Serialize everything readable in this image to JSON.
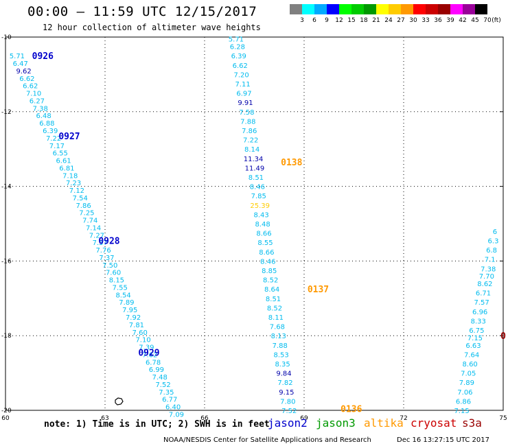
{
  "header": {
    "title": "00:00 – 11:59 UTC 12/15/2017",
    "subtitle": "12 hour collection of altimeter wave heights"
  },
  "legend": {
    "unit": "(ft)",
    "swatches": [
      {
        "color": "#808080",
        "label": "3"
      },
      {
        "color": "#00ffff",
        "label": "6"
      },
      {
        "color": "#00aaff",
        "label": "9"
      },
      {
        "color": "#0000ff",
        "label": "12"
      },
      {
        "color": "#00ff00",
        "label": "15"
      },
      {
        "color": "#00cc00",
        "label": "18"
      },
      {
        "color": "#009900",
        "label": "21"
      },
      {
        "color": "#ffff00",
        "label": "24"
      },
      {
        "color": "#ffcc00",
        "label": "27"
      },
      {
        "color": "#ff9900",
        "label": "30"
      },
      {
        "color": "#ff0000",
        "label": "33"
      },
      {
        "color": "#cc0000",
        "label": "36"
      },
      {
        "color": "#990000",
        "label": "39"
      },
      {
        "color": "#ff00ff",
        "label": "42"
      },
      {
        "color": "#990099",
        "label": "45"
      },
      {
        "color": "#000000",
        "label": "70"
      }
    ]
  },
  "axes": {
    "lon_ticks": [
      "60",
      "63",
      "66",
      "69",
      "72",
      "75"
    ],
    "lat_ticks": [
      "-10",
      "-12",
      "-14",
      "-16",
      "-18",
      "-20"
    ]
  },
  "colors": {
    "jason2": "#0000cc",
    "jason3": "#009900",
    "altika": "#ff9900",
    "cryosat": "#cc0000",
    "s3a": "#990000",
    "blue_light": "#00bbee",
    "blue_dark": "#0000aa",
    "yellow": "#ffcc00"
  },
  "tracks": [
    {
      "satellite": "jason2",
      "times": [
        {
          "label": "0926",
          "lon": 60.8,
          "lat": -10.5
        },
        {
          "label": "0927",
          "lon": 61.6,
          "lat": -12.65
        },
        {
          "label": "0928",
          "lon": 62.8,
          "lat": -15.45
        },
        {
          "label": "0929",
          "lon": 64.0,
          "lat": -18.45
        }
      ],
      "points": [
        {
          "lon": 60.35,
          "lat": -10.5,
          "v": "5.71"
        },
        {
          "lon": 60.45,
          "lat": -10.7,
          "v": "6.47"
        },
        {
          "lon": 60.55,
          "lat": -10.9,
          "v": "9.62",
          "c": "dark"
        },
        {
          "lon": 60.65,
          "lat": -11.1,
          "v": "6.62"
        },
        {
          "lon": 60.75,
          "lat": -11.3,
          "v": "6.62"
        },
        {
          "lon": 60.85,
          "lat": -11.5,
          "v": "7.10"
        },
        {
          "lon": 60.95,
          "lat": -11.7,
          "v": "6.27"
        },
        {
          "lon": 61.05,
          "lat": -11.9,
          "v": "7.38"
        },
        {
          "lon": 61.15,
          "lat": -12.1,
          "v": "6.48"
        },
        {
          "lon": 61.25,
          "lat": -12.3,
          "v": "6.88"
        },
        {
          "lon": 61.35,
          "lat": -12.5,
          "v": "6.39"
        },
        {
          "lon": 61.45,
          "lat": -12.7,
          "v": "7.22"
        },
        {
          "lon": 61.55,
          "lat": -12.9,
          "v": "7.17"
        },
        {
          "lon": 61.65,
          "lat": -13.1,
          "v": "6.55"
        },
        {
          "lon": 61.75,
          "lat": -13.3,
          "v": "6.61"
        },
        {
          "lon": 61.85,
          "lat": -13.5,
          "v": "6.81"
        },
        {
          "lon": 61.95,
          "lat": -13.7,
          "v": "7.18"
        },
        {
          "lon": 62.05,
          "lat": -13.9,
          "v": "7.23"
        },
        {
          "lon": 62.15,
          "lat": -14.1,
          "v": "7.12"
        },
        {
          "lon": 62.25,
          "lat": -14.3,
          "v": "7.54"
        },
        {
          "lon": 62.35,
          "lat": -14.5,
          "v": "7.86"
        },
        {
          "lon": 62.45,
          "lat": -14.7,
          "v": "7.25"
        },
        {
          "lon": 62.55,
          "lat": -14.9,
          "v": "7.74"
        },
        {
          "lon": 62.65,
          "lat": -15.1,
          "v": "7.14"
        },
        {
          "lon": 62.75,
          "lat": -15.3,
          "v": "7.27"
        },
        {
          "lon": 62.85,
          "lat": -15.5,
          "v": "7.57"
        },
        {
          "lon": 62.95,
          "lat": -15.7,
          "v": "7.76"
        },
        {
          "lon": 63.05,
          "lat": -15.9,
          "v": "7.37"
        },
        {
          "lon": 63.15,
          "lat": -16.1,
          "v": "7.50"
        },
        {
          "lon": 63.25,
          "lat": -16.3,
          "v": "7.60"
        },
        {
          "lon": 63.35,
          "lat": -16.5,
          "v": "8.15"
        },
        {
          "lon": 63.45,
          "lat": -16.7,
          "v": "7.55"
        },
        {
          "lon": 63.55,
          "lat": -16.9,
          "v": "8.54"
        },
        {
          "lon": 63.65,
          "lat": -17.1,
          "v": "7.89"
        },
        {
          "lon": 63.75,
          "lat": -17.3,
          "v": "7.95"
        },
        {
          "lon": 63.85,
          "lat": -17.5,
          "v": "7.92"
        },
        {
          "lon": 63.95,
          "lat": -17.7,
          "v": "7.81"
        },
        {
          "lon": 64.05,
          "lat": -17.9,
          "v": "7.60"
        },
        {
          "lon": 64.15,
          "lat": -18.1,
          "v": "7.10"
        },
        {
          "lon": 64.25,
          "lat": -18.3,
          "v": "7.39"
        },
        {
          "lon": 64.35,
          "lat": -18.5,
          "v": "7.62"
        },
        {
          "lon": 64.45,
          "lat": -18.7,
          "v": "6.78"
        },
        {
          "lon": 64.55,
          "lat": -18.9,
          "v": "6.99"
        },
        {
          "lon": 64.65,
          "lat": -19.1,
          "v": "7.48"
        },
        {
          "lon": 64.75,
          "lat": -19.3,
          "v": "7.52"
        },
        {
          "lon": 64.85,
          "lat": -19.5,
          "v": "7.35"
        },
        {
          "lon": 64.95,
          "lat": -19.7,
          "v": "6.77"
        },
        {
          "lon": 65.05,
          "lat": -19.9,
          "v": "6.40"
        },
        {
          "lon": 65.15,
          "lat": -20.1,
          "v": "7.09"
        }
      ]
    },
    {
      "satellite": "altika",
      "times": [
        {
          "label": "0138",
          "lon": 68.3,
          "lat": -13.35
        },
        {
          "label": "0137",
          "lon": 69.1,
          "lat": -16.75
        },
        {
          "label": "0136",
          "lon": 70.1,
          "lat": -19.95
        }
      ],
      "points": [
        {
          "lon": 66.95,
          "lat": -10.05,
          "v": "5.71"
        },
        {
          "lon": 66.99,
          "lat": -10.25,
          "v": "6.28"
        },
        {
          "lon": 67.03,
          "lat": -10.5,
          "v": "6.39"
        },
        {
          "lon": 67.07,
          "lat": -10.75,
          "v": "6.62"
        },
        {
          "lon": 67.11,
          "lat": -11.0,
          "v": "7.20"
        },
        {
          "lon": 67.15,
          "lat": -11.25,
          "v": "7.11"
        },
        {
          "lon": 67.19,
          "lat": -11.5,
          "v": "6.97"
        },
        {
          "lon": 67.23,
          "lat": -11.75,
          "v": "9.91",
          "c": "dark"
        },
        {
          "lon": 67.27,
          "lat": -12.0,
          "v": "7.58"
        },
        {
          "lon": 67.31,
          "lat": -12.25,
          "v": "7.88"
        },
        {
          "lon": 67.35,
          "lat": -12.5,
          "v": "7.86"
        },
        {
          "lon": 67.39,
          "lat": -12.75,
          "v": "7.22"
        },
        {
          "lon": 67.43,
          "lat": -13.0,
          "v": "8.14"
        },
        {
          "lon": 67.47,
          "lat": -13.25,
          "v": "11.34",
          "c": "dark"
        },
        {
          "lon": 67.51,
          "lat": -13.5,
          "v": "11.49",
          "c": "dark"
        },
        {
          "lon": 67.55,
          "lat": -13.75,
          "v": "8.51"
        },
        {
          "lon": 67.59,
          "lat": -14.0,
          "v": "8.46"
        },
        {
          "lon": 67.63,
          "lat": -14.25,
          "v": "7.85"
        },
        {
          "lon": 67.67,
          "lat": -14.5,
          "v": "25.39",
          "c": "yellow"
        },
        {
          "lon": 67.71,
          "lat": -14.75,
          "v": "8.43"
        },
        {
          "lon": 67.75,
          "lat": -15.0,
          "v": "8.48"
        },
        {
          "lon": 67.79,
          "lat": -15.25,
          "v": "8.66"
        },
        {
          "lon": 67.83,
          "lat": -15.5,
          "v": "8.55"
        },
        {
          "lon": 67.87,
          "lat": -15.75,
          "v": "8.66"
        },
        {
          "lon": 67.91,
          "lat": -16.0,
          "v": "8.46"
        },
        {
          "lon": 67.95,
          "lat": -16.25,
          "v": "8.85"
        },
        {
          "lon": 67.99,
          "lat": -16.5,
          "v": "8.52"
        },
        {
          "lon": 68.03,
          "lat": -16.75,
          "v": "8.64"
        },
        {
          "lon": 68.07,
          "lat": -17.0,
          "v": "8.51"
        },
        {
          "lon": 68.11,
          "lat": -17.25,
          "v": "8.52"
        },
        {
          "lon": 68.15,
          "lat": -17.5,
          "v": "8.11"
        },
        {
          "lon": 68.19,
          "lat": -17.75,
          "v": "7.68"
        },
        {
          "lon": 68.23,
          "lat": -18.0,
          "v": "8.13"
        },
        {
          "lon": 68.27,
          "lat": -18.25,
          "v": "7.88"
        },
        {
          "lon": 68.31,
          "lat": -18.5,
          "v": "8.53"
        },
        {
          "lon": 68.35,
          "lat": -18.75,
          "v": "8.35"
        },
        {
          "lon": 68.39,
          "lat": -19.0,
          "v": "9.84",
          "c": "dark"
        },
        {
          "lon": 68.43,
          "lat": -19.25,
          "v": "7.82"
        },
        {
          "lon": 68.47,
          "lat": -19.5,
          "v": "9.15",
          "c": "dark"
        },
        {
          "lon": 68.51,
          "lat": -19.75,
          "v": "7.80"
        },
        {
          "lon": 68.55,
          "lat": -20.0,
          "v": "7.52"
        }
      ]
    },
    {
      "satellite": "s3a",
      "times": [
        {
          "label": "0",
          "lon": 74.92,
          "lat": -18.0
        }
      ],
      "points": [
        {
          "lon": 74.75,
          "lat": -15.2,
          "v": "6"
        },
        {
          "lon": 74.7,
          "lat": -15.45,
          "v": "6.3"
        },
        {
          "lon": 74.65,
          "lat": -15.7,
          "v": "6.8"
        },
        {
          "lon": 74.6,
          "lat": -15.95,
          "v": "7.1"
        },
        {
          "lon": 74.55,
          "lat": -16.2,
          "v": "7.38"
        },
        {
          "lon": 74.5,
          "lat": -16.4,
          "v": "7.70"
        },
        {
          "lon": 74.45,
          "lat": -16.6,
          "v": "8.62"
        },
        {
          "lon": 74.4,
          "lat": -16.85,
          "v": "6.71"
        },
        {
          "lon": 74.35,
          "lat": -17.1,
          "v": "7.57"
        },
        {
          "lon": 74.3,
          "lat": -17.35,
          "v": "6.96"
        },
        {
          "lon": 74.25,
          "lat": -17.6,
          "v": "8.33"
        },
        {
          "lon": 74.2,
          "lat": -17.85,
          "v": "6.75"
        },
        {
          "lon": 74.15,
          "lat": -18.05,
          "v": "7.15"
        },
        {
          "lon": 74.1,
          "lat": -18.25,
          "v": "6.63"
        },
        {
          "lon": 74.05,
          "lat": -18.5,
          "v": "7.64"
        },
        {
          "lon": 74.0,
          "lat": -18.75,
          "v": "8.60"
        },
        {
          "lon": 73.95,
          "lat": -19.0,
          "v": "7.05"
        },
        {
          "lon": 73.9,
          "lat": -19.25,
          "v": "7.89"
        },
        {
          "lon": 73.85,
          "lat": -19.5,
          "v": "7.06"
        },
        {
          "lon": 73.8,
          "lat": -19.75,
          "v": "6.86"
        },
        {
          "lon": 73.75,
          "lat": -20.0,
          "v": "7.15"
        }
      ]
    }
  ],
  "note": "note: 1) Time is in UTC; 2) SWH is in feet",
  "satellites": [
    {
      "name": "jason2",
      "color": "#0000cc",
      "left": 390
    },
    {
      "name": "jason3",
      "color": "#009900",
      "left": 460
    },
    {
      "name": "altika",
      "color": "#ff9900",
      "left": 530
    },
    {
      "name": "cryosat",
      "color": "#cc0000",
      "left": 598
    },
    {
      "name": "s3a",
      "color": "#990000",
      "left": 673
    }
  ],
  "footer": {
    "credit": "NOAA/NESDIS Center for Satellite Applications and Research",
    "timestamp": "Dec 16 13:27:15 UTC 2017"
  }
}
